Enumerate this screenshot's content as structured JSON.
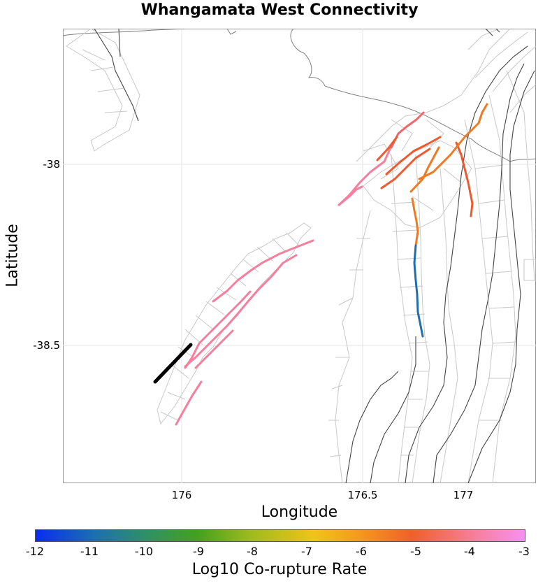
{
  "title": "Whangamata West Connectivity",
  "axes": {
    "xlabel": "Longitude",
    "ylabel": "Latitude",
    "xticks": [
      "176",
      "176.5",
      "177"
    ],
    "yticks": [
      "-38",
      "-38.5"
    ]
  },
  "colorbar": {
    "label": "Log10 Co-rupture Rate",
    "ticks": [
      "-12",
      "-11",
      "-10",
      "-9",
      "-8",
      "-7",
      "-6",
      "-5",
      "-4",
      "-3"
    ]
  },
  "colors": {
    "selected": "#000000",
    "pink": "#f77f9e",
    "red_orange": "#ee5a2f",
    "orange": "#f07a22",
    "blue": "#1f6fb0",
    "coast": "#808080",
    "trace": "#444444",
    "patch": "#c8c8c8"
  }
}
